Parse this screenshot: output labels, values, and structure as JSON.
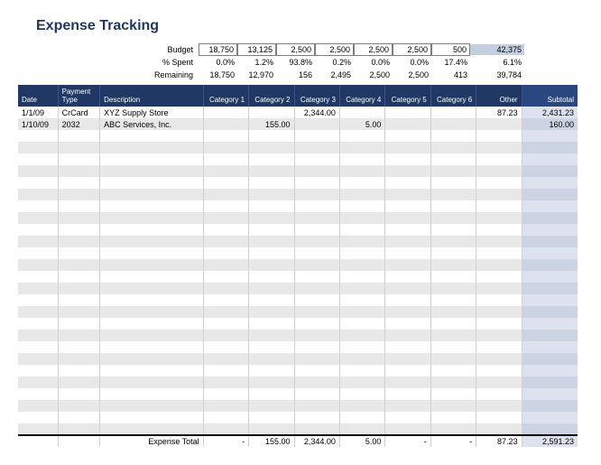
{
  "title": "Expense Tracking",
  "summary": {
    "rows": [
      {
        "label": "Budget",
        "boxed": true,
        "cells": [
          "18,750",
          "13,125",
          "2,500",
          "2,500",
          "2,500",
          "2,500",
          "500"
        ],
        "total": "42,375",
        "totalShaded": true
      },
      {
        "label": "% Spent",
        "boxed": false,
        "cells": [
          "0.0%",
          "1.2%",
          "93.8%",
          "0.2%",
          "0.0%",
          "0.0%",
          "17.4%"
        ],
        "total": "6.1%",
        "totalShaded": false
      },
      {
        "label": "Remaining",
        "boxed": false,
        "cells": [
          "18,750",
          "12,970",
          "156",
          "2,495",
          "2,500",
          "2,500",
          "413"
        ],
        "total": "39,784",
        "totalShaded": false
      }
    ]
  },
  "columns": [
    {
      "label": "Date",
      "cls": "col-date",
      "align": "left"
    },
    {
      "label": "Payment\nType",
      "cls": "col-pay",
      "align": "left"
    },
    {
      "label": "Description",
      "cls": "col-desc",
      "align": "left"
    },
    {
      "label": "Category 1",
      "cls": "col-cat",
      "align": "right"
    },
    {
      "label": "Category 2",
      "cls": "col-cat",
      "align": "right"
    },
    {
      "label": "Category 3",
      "cls": "col-cat",
      "align": "right"
    },
    {
      "label": "Category 4",
      "cls": "col-cat",
      "align": "right"
    },
    {
      "label": "Category 5",
      "cls": "col-cat",
      "align": "right"
    },
    {
      "label": "Category 6",
      "cls": "col-cat",
      "align": "right"
    },
    {
      "label": "Other",
      "cls": "col-other",
      "align": "right"
    },
    {
      "label": "Subtotal",
      "cls": "col-sub",
      "align": "right"
    }
  ],
  "rows": [
    [
      "1/1/09",
      "CrCard",
      "XYZ Supply Store",
      "",
      "",
      "2,344.00",
      "",
      "",
      "",
      "87.23",
      "2,431.23"
    ],
    [
      "1/10/09",
      "2032",
      "ABC Services, Inc.",
      "",
      "155.00",
      "",
      "5.00",
      "",
      "",
      "",
      "160.00"
    ]
  ],
  "emptyRowCount": 26,
  "footer": {
    "label": "Expense Total",
    "cells": [
      "-",
      "155.00",
      "2,344.00",
      "5.00",
      "-",
      "-",
      "87.23",
      "2,591.23"
    ]
  },
  "colors": {
    "header_bg": "#1f3864",
    "header_fg": "#ffffff",
    "stripe": "#e8e8e8",
    "subtotal_bg": "#dde2ee",
    "total_bg": "#c5cde0",
    "title_color": "#1f3864"
  }
}
